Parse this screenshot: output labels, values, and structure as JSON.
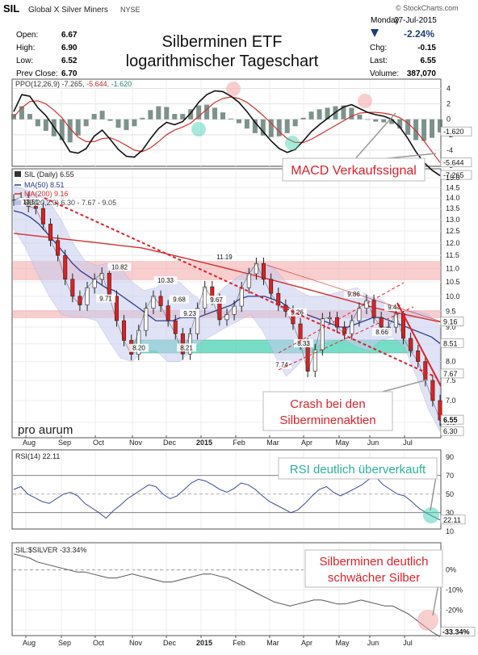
{
  "header": {
    "symbol": "SIL",
    "name": "Global X Silver Miners",
    "exchange": "NYSE",
    "stockcharts": "© StockCharts.com",
    "day": "Monday",
    "date": "27-Jul-2015",
    "change_pct": "-2.24%",
    "open_label": "Open:",
    "open": "6.67",
    "high_label": "High:",
    "high": "6.90",
    "low_label": "Low:",
    "low": "6.52",
    "prev_label": "Prev Close:",
    "prev": "6.70",
    "chg_label": "Chg:",
    "chg": "-0.15",
    "last_label": "Last:",
    "last": "6.55",
    "vol_label": "Volume:",
    "vol": "387,070",
    "title_line1": "Silberminen ETF",
    "title_line2": "logarithmischer Tageschart",
    "accent_down": "#1f3d7a"
  },
  "annotations": {
    "macd": "MACD Verkaufssignal",
    "crash_line1": "Crash bei den",
    "crash_line2": "Silberminenaktien",
    "rsi": "RSI deutlich überverkauft",
    "rel_line1": "Silberminen deutlich",
    "rel_line2": "schwächer Silber",
    "logo": "pro aurum",
    "red": "#e0202a",
    "green": "#2bb39a"
  },
  "months": [
    "Aug",
    "Sep",
    "Oct",
    "Nov",
    "Dec",
    "2015",
    "Feb",
    "Mar",
    "Apr",
    "May",
    "Jun",
    "Jul"
  ],
  "chart_data": [
    {
      "type": "line",
      "name": "ppo_panel",
      "legend": "PPO(12,26,9) -7.265, -5.644, -1.620",
      "legend_parts": [
        "PPO(12,26,9)",
        "-7.265,",
        "-5.644,",
        "-1.620"
      ],
      "ylim": [
        -6,
        5
      ],
      "ticks": [
        "4",
        "2",
        "0",
        "-2",
        "-4",
        "-6"
      ],
      "tick_values": [
        4,
        2,
        0,
        -2,
        -4,
        -6
      ],
      "right_labels": [
        "-1.620",
        "-5.644",
        "-7.265"
      ],
      "right_values": [
        -1.62,
        -5.644,
        -7.265
      ],
      "ppo": [
        1.0,
        3.2,
        3.0,
        1.5,
        0.5,
        -1.0,
        -2.5,
        -4.2,
        -4.4,
        -3.8,
        -2.2,
        -1.4,
        -2.6,
        -3.9,
        -4.8,
        -4.9,
        -4.0,
        -2.5,
        -1.2,
        -0.4,
        -0.7,
        -0.3,
        0.8,
        2.2,
        3.2,
        3.7,
        3.6,
        3.0,
        2.2,
        1.0,
        -0.4,
        -1.6,
        -2.8,
        -3.8,
        -4.3,
        -3.9,
        -2.8,
        -1.6,
        -0.7,
        0.1,
        0.9,
        1.6,
        1.9,
        1.4,
        0.9,
        0.6,
        0.4,
        0.0,
        -1.0,
        -2.5,
        -4.2,
        -5.6,
        -6.6,
        -7.3
      ],
      "signal": [
        0.3,
        1.5,
        2.3,
        2.4,
        2.0,
        1.2,
        0.2,
        -1.2,
        -2.3,
        -2.9,
        -2.9,
        -2.5,
        -2.4,
        -2.8,
        -3.4,
        -4.0,
        -4.2,
        -3.7,
        -2.9,
        -2.0,
        -1.4,
        -1.0,
        -0.5,
        0.4,
        1.3,
        2.2,
        2.7,
        2.9,
        2.7,
        2.2,
        1.4,
        0.5,
        -0.5,
        -1.6,
        -2.5,
        -3.0,
        -3.0,
        -2.6,
        -2.0,
        -1.4,
        -0.8,
        -0.2,
        0.4,
        0.8,
        0.9,
        0.9,
        0.8,
        0.6,
        0.2,
        -0.5,
        -1.5,
        -2.8,
        -4.2,
        -5.6
      ],
      "legend_colors": [
        "#333333",
        "#c62828",
        "#1a8a6e"
      ]
    },
    {
      "type": "line",
      "name": "price_panel",
      "legend": [
        "SIL (Daily) 6.55",
        "MA(50) 8.51",
        "MA(200) 9.16",
        "BB(20,2.0) 6.30 - 7.67 - 9.05"
      ],
      "scale": "log",
      "ylim": [
        6.2,
        15.0
      ],
      "ticks": [
        "15.0",
        "14.5",
        "14.0",
        "13.5",
        "13.0",
        "12.5",
        "12.0",
        "11.5",
        "11.0",
        "10.5",
        "10.0",
        "9.5",
        "9.0",
        "8.5",
        "8.0",
        "7.5",
        "7.0",
        "6.5"
      ],
      "tick_values": [
        15.0,
        14.5,
        14.0,
        13.5,
        13.0,
        12.5,
        12.0,
        11.5,
        11.0,
        10.5,
        10.0,
        9.5,
        9.0,
        8.5,
        8.0,
        7.5,
        7.0,
        6.5
      ],
      "price": [
        13.9,
        14.0,
        13.6,
        13.5,
        12.8,
        12.1,
        11.5,
        10.6,
        10.0,
        9.71,
        10.3,
        10.6,
        10.82,
        10.0,
        9.2,
        8.6,
        8.2,
        8.9,
        9.6,
        10.0,
        9.68,
        9.2,
        8.8,
        8.21,
        8.8,
        9.6,
        10.33,
        9.9,
        9.23,
        9.4,
        9.67,
        10.3,
        10.8,
        11.19,
        10.6,
        10.1,
        9.7,
        9.5,
        9.1,
        8.5,
        7.74,
        8.33,
        9.26,
        9.3,
        9.0,
        8.8,
        9.2,
        9.6,
        9.86,
        9.3,
        9.0,
        9.0,
        9.43,
        8.66,
        8.3,
        8.0,
        7.5,
        7.0,
        6.55
      ],
      "ma50": [
        13.4,
        13.3,
        13.1,
        12.8,
        12.4,
        12.0,
        11.6,
        11.2,
        10.9,
        10.7,
        10.5,
        10.3,
        10.2,
        10.0,
        9.8,
        9.6,
        9.4,
        9.2,
        9.2,
        9.2,
        9.3,
        9.3,
        9.3,
        9.4,
        9.5,
        9.6,
        9.7,
        9.9,
        10.0,
        10.0,
        10.0,
        9.9,
        9.8,
        9.6,
        9.5,
        9.4,
        9.3,
        9.2,
        9.1,
        9.0,
        9.0,
        9.1,
        9.2,
        9.3,
        9.3,
        9.2,
        9.1,
        9.0,
        8.9,
        8.8,
        8.7,
        8.51
      ],
      "ma200": [
        12.4,
        12.3,
        12.2,
        12.1,
        12.0,
        11.9,
        11.8,
        11.6,
        11.4,
        11.2,
        11.0,
        10.8,
        10.6,
        10.4,
        10.2,
        10.0,
        9.8,
        9.6,
        9.45,
        9.3,
        9.16
      ],
      "bb_upper": [
        14.6,
        14.4,
        14.2,
        13.8,
        13.0,
        12.0,
        11.3,
        11.1,
        11.2,
        11.0,
        10.5,
        10.2,
        10.3,
        10.6,
        10.5,
        10.1,
        9.8,
        10.0,
        10.4,
        10.7,
        11.0,
        11.2,
        11.0,
        10.5,
        10.2,
        10.0,
        10.0,
        10.1,
        10.2,
        10.3,
        10.0,
        9.9,
        9.6,
        9.5,
        9.5,
        9.4,
        9.05
      ],
      "bb_lower": [
        12.6,
        11.8,
        10.8,
        10.0,
        9.4,
        9.3,
        9.3,
        9.2,
        8.6,
        8.1,
        8.0,
        8.3,
        8.3,
        8.0,
        8.0,
        8.3,
        8.6,
        8.8,
        9.0,
        9.2,
        9.4,
        8.9,
        8.2,
        7.6,
        7.9,
        8.3,
        8.5,
        8.6,
        8.6,
        8.4,
        8.3,
        8.6,
        8.7,
        8.4,
        7.6,
        6.8,
        6.3
      ],
      "labels": [
        "13.51",
        "10.82",
        "9.71",
        "10.33",
        "9.68",
        "9.23",
        "8.20",
        "8.21",
        "9.67",
        "11.19",
        "7.74",
        "8.33",
        "9.26",
        "9.86",
        "9.43",
        "8.66"
      ],
      "label_values": [
        13.51,
        10.82,
        9.71,
        10.33,
        9.68,
        9.23,
        8.2,
        8.21,
        9.67,
        11.19,
        7.74,
        8.33,
        9.26,
        9.86,
        9.43,
        8.66
      ],
      "right_labels": [
        "9.16",
        "8.51",
        "7.67",
        "6.55",
        "6.30"
      ],
      "right_values": [
        9.16,
        8.51,
        7.67,
        6.55,
        6.3
      ]
    },
    {
      "type": "line",
      "name": "rsi_panel",
      "legend": "RSI(14) 22.11",
      "ylim": [
        15,
        95
      ],
      "ticks": [
        "90",
        "70",
        "50",
        "30",
        "10"
      ],
      "tick_values": [
        90,
        70,
        50,
        30,
        10
      ],
      "right_labels": [
        "22.11"
      ],
      "right_values": [
        22.11
      ],
      "rsi": [
        55,
        58,
        50,
        46,
        42,
        40,
        45,
        50,
        52,
        48,
        40,
        35,
        30,
        24,
        32,
        38,
        45,
        50,
        55,
        60,
        58,
        50,
        45,
        48,
        55,
        62,
        66,
        64,
        60,
        55,
        52,
        56,
        62,
        60,
        55,
        48,
        42,
        38,
        34,
        30,
        33,
        40,
        48,
        55,
        58,
        52,
        48,
        52,
        56,
        60,
        66,
        68,
        60,
        55,
        50,
        48,
        42,
        35,
        30,
        26,
        22.11
      ]
    },
    {
      "type": "line",
      "name": "ratio_panel",
      "legend": "SIL:$SILVER -33.34%",
      "ylim": [
        -32,
        12
      ],
      "ticks": [
        "0%",
        "-10%",
        "-20%",
        "-30%"
      ],
      "tick_values": [
        0,
        -10,
        -20,
        -30
      ],
      "right_labels": [
        "-33.34%"
      ],
      "right_values": [
        -33.34
      ],
      "ratio": [
        8,
        7,
        6,
        4,
        3,
        2,
        1,
        0,
        -1,
        -1,
        -2,
        -3,
        -4,
        -4,
        -3,
        -2,
        -3,
        -4,
        -5,
        -6,
        -6,
        -5,
        -4,
        -3,
        -2,
        -2,
        -3,
        -4,
        -6,
        -8,
        -10,
        -12,
        -14,
        -16,
        -17,
        -18,
        -17,
        -16,
        -15,
        -15,
        -16,
        -17,
        -17,
        -16,
        -15,
        -16,
        -17,
        -18,
        -18,
        -20,
        -22,
        -25,
        -28,
        -31,
        -33.34
      ]
    }
  ]
}
